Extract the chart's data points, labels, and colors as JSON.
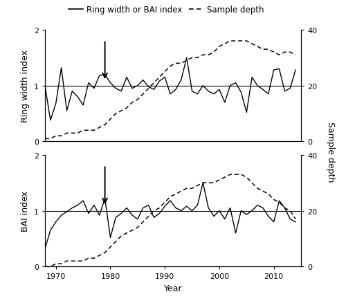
{
  "years": [
    1968,
    1969,
    1970,
    1971,
    1972,
    1973,
    1974,
    1975,
    1976,
    1977,
    1978,
    1979,
    1980,
    1981,
    1982,
    1983,
    1984,
    1985,
    1986,
    1987,
    1988,
    1989,
    1990,
    1991,
    1992,
    1993,
    1994,
    1995,
    1996,
    1997,
    1998,
    1999,
    2000,
    2001,
    2002,
    2003,
    2004,
    2005,
    2006,
    2007,
    2008,
    2009,
    2010,
    2011,
    2012,
    2013,
    2014
  ],
  "rw_index": [
    1.0,
    0.38,
    0.68,
    1.32,
    0.55,
    0.9,
    0.8,
    0.65,
    1.05,
    0.95,
    1.18,
    1.2,
    1.05,
    0.95,
    0.9,
    1.15,
    0.95,
    1.0,
    1.1,
    0.98,
    0.93,
    1.08,
    1.15,
    0.85,
    0.93,
    1.1,
    1.5,
    0.9,
    0.85,
    1.0,
    0.9,
    0.85,
    0.93,
    0.7,
    1.0,
    1.05,
    0.88,
    0.52,
    1.15,
    1.0,
    0.93,
    0.85,
    1.28,
    1.3,
    0.9,
    0.95,
    1.28
  ],
  "rw_sample": [
    1,
    1,
    2,
    2,
    3,
    3,
    3,
    4,
    4,
    4,
    5,
    6,
    8,
    10,
    11,
    12,
    14,
    15,
    17,
    19,
    21,
    23,
    25,
    27,
    28,
    28,
    29,
    30,
    30,
    31,
    31,
    32,
    34,
    35,
    36,
    36,
    36,
    36,
    35,
    34,
    33,
    33,
    32,
    31,
    32,
    32,
    31
  ],
  "bai_index": [
    0.32,
    0.65,
    0.8,
    0.92,
    0.98,
    1.05,
    1.1,
    1.18,
    0.95,
    1.1,
    0.92,
    1.22,
    0.52,
    0.88,
    0.95,
    1.05,
    0.92,
    0.85,
    1.05,
    1.1,
    0.88,
    0.95,
    1.08,
    1.18,
    1.05,
    1.0,
    1.08,
    1.0,
    1.1,
    1.5,
    1.05,
    0.9,
    1.0,
    0.85,
    1.05,
    0.6,
    1.0,
    0.93,
    1.0,
    1.1,
    1.05,
    0.9,
    0.8,
    1.18,
    1.05,
    0.85,
    0.8
  ],
  "bai_sample": [
    0,
    0,
    1,
    1,
    2,
    2,
    2,
    2,
    3,
    3,
    4,
    5,
    7,
    9,
    11,
    12,
    13,
    14,
    16,
    18,
    20,
    21,
    23,
    25,
    26,
    27,
    28,
    28,
    29,
    30,
    30,
    30,
    31,
    32,
    33,
    33,
    33,
    32,
    30,
    28,
    27,
    26,
    24,
    23,
    21,
    20,
    17
  ],
  "rw_arrow_year": 1979,
  "bai_arrow_year": 1979,
  "xlim": [
    1968,
    2015
  ],
  "ylim_index": [
    0,
    2
  ],
  "ylim_sample": [
    0,
    40
  ],
  "xticks": [
    1970,
    1980,
    1990,
    2000,
    2010
  ],
  "yticks_index": [
    0,
    1,
    2
  ],
  "yticks_sample": [
    0,
    20,
    40
  ],
  "xlabel": "Year",
  "rw_ylabel": "Ring width index",
  "bai_ylabel": "BAI index",
  "right_ylabel": "Sample depth",
  "legend_solid": "Ring width or BAI index",
  "legend_dashed": "Sample depth",
  "line_color": "#000000",
  "bg_color": "#ffffff",
  "axis_fontsize": 9,
  "tick_fontsize": 8,
  "legend_fontsize": 8.5
}
